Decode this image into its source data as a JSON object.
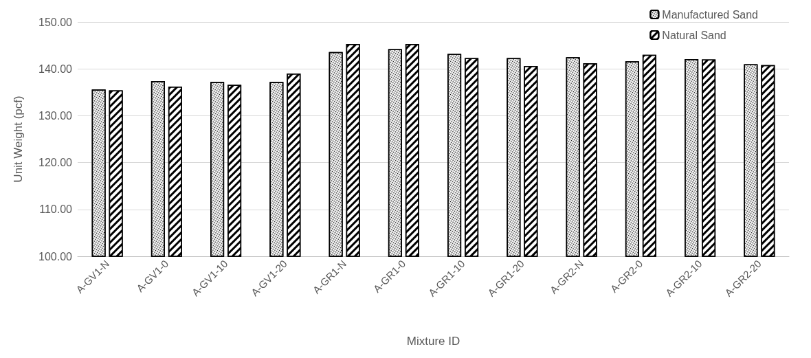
{
  "chart_data": {
    "type": "bar",
    "xlabel": "Mixture ID",
    "ylabel": "Unit Weight (pcf)",
    "categories": [
      "A-GV1-N",
      "A-GV1-0",
      "A-GV1-10",
      "A-GV1-20",
      "A-GR1-N",
      "A-GR1-0",
      "A-GR1-10",
      "A-GR1-20",
      "A-GR2-N",
      "A-GR2-0",
      "A-GR2-10",
      "A-GR2-20"
    ],
    "series": [
      {
        "name": "Manufactured Sand",
        "color": "#ffffff",
        "values": [
          135.6,
          137.4,
          137.2,
          137.2,
          143.6,
          144.2,
          143.2,
          142.3,
          142.5,
          141.6,
          142.1,
          141.0
        ]
      },
      {
        "name": "Natural Sand",
        "color": "#ffffff",
        "values": [
          135.4,
          136.2,
          136.6,
          139.0,
          145.3,
          145.3,
          142.3,
          140.6,
          141.2,
          143.0,
          142.0,
          140.8
        ]
      }
    ],
    "ylim": [
      100,
      150
    ],
    "yticks": [
      {
        "value": 100,
        "label": "100.00"
      },
      {
        "value": 110,
        "label": "110.00"
      },
      {
        "value": 120,
        "label": "120.00"
      },
      {
        "value": 130,
        "label": "130.00"
      },
      {
        "value": 140,
        "label": "140.00"
      },
      {
        "value": 150,
        "label": "150.00"
      }
    ],
    "grid": "y",
    "legend": "top right"
  }
}
